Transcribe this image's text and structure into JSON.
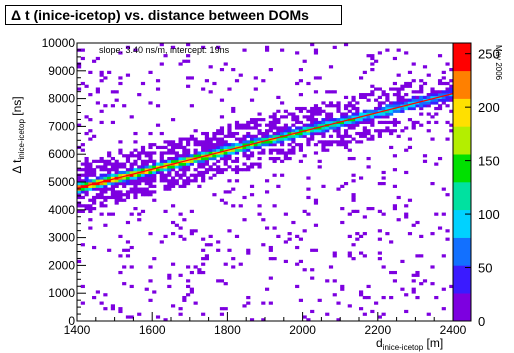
{
  "chart_data": {
    "type": "heatmap",
    "title": {
      "delta": "Δ",
      "text": "t (inice-icetop) vs. distance between DOMs"
    },
    "annotation": "slope: 3.40 ns/m, intercept:  19ns",
    "side_label": "May 2006",
    "xlabel": {
      "main": "d",
      "sub": "inice-icetop",
      "unit": "[m]"
    },
    "ylabel": {
      "delta": "Δ",
      "main": "t",
      "sub": "inice-icetop",
      "unit": "[ns]"
    },
    "xlim": [
      1400,
      2400
    ],
    "ylim": [
      0,
      10000
    ],
    "zlim": [
      0,
      260
    ],
    "x_ticks": [
      "1400",
      "1600",
      "1800",
      "2000",
      "2200",
      "2400"
    ],
    "y_ticks": [
      "0",
      "1000",
      "2000",
      "3000",
      "4000",
      "5000",
      "6000",
      "7000",
      "8000",
      "9000",
      "10000"
    ],
    "z_ticks": [
      "0",
      "50",
      "100",
      "150",
      "200",
      "250"
    ],
    "grid": false,
    "colormap": [
      "#7d00e0",
      "#3a1bff",
      "#1270ff",
      "#00d2ff",
      "#00e1a0",
      "#00e000",
      "#b4ee00",
      "#ffe000",
      "#ff8000",
      "#ff0000"
    ],
    "fit_line": {
      "slope": 3.4,
      "intercept": 19,
      "color": "#ff0000"
    }
  }
}
